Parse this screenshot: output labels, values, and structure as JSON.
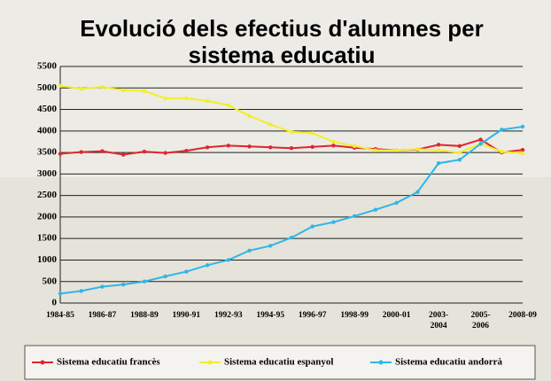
{
  "chart_data": {
    "type": "line",
    "title": "Evolució dels efectius  d'alumnes per sistema educatiu",
    "categories": [
      "1984-85",
      null,
      "1986-87",
      null,
      "1988-89",
      null,
      "1990-91",
      null,
      "1992-93",
      null,
      "1994-95",
      null,
      "1996-97",
      null,
      "1998-99",
      null,
      "2000-01",
      null,
      "2003-2004",
      null,
      "2005-2006",
      null,
      "2008-09"
    ],
    "series": [
      {
        "name": "Sistema educatiu francès",
        "color": "#e0262b",
        "values": [
          3470,
          3510,
          3530,
          3450,
          3520,
          3490,
          3540,
          3620,
          3660,
          3640,
          3620,
          3600,
          3630,
          3660,
          3610,
          3580,
          3550,
          3570,
          3680,
          3650,
          3800,
          3500,
          3560
        ]
      },
      {
        "name": "Sistema educatiu espanyol",
        "color": "#f2ee2a",
        "values": [
          5050,
          4980,
          5020,
          4950,
          4930,
          4760,
          4760,
          4700,
          4600,
          4350,
          4150,
          3980,
          3950,
          3750,
          3650,
          3550,
          3550,
          3580,
          3550,
          3500,
          3700,
          3520,
          3480
        ]
      },
      {
        "name": "Sistema educatiu andorrà",
        "color": "#2fb6e8",
        "values": [
          220,
          280,
          380,
          430,
          500,
          620,
          730,
          880,
          1000,
          1220,
          1330,
          1520,
          1780,
          1880,
          2020,
          2170,
          2330,
          2580,
          3250,
          3330,
          3700,
          4030,
          4100
        ]
      }
    ],
    "ylim": [
      0,
      5500
    ],
    "yticks": [
      0,
      500,
      1000,
      1500,
      2000,
      2500,
      3000,
      3500,
      4000,
      4500,
      5000,
      5500
    ],
    "grid": true
  }
}
